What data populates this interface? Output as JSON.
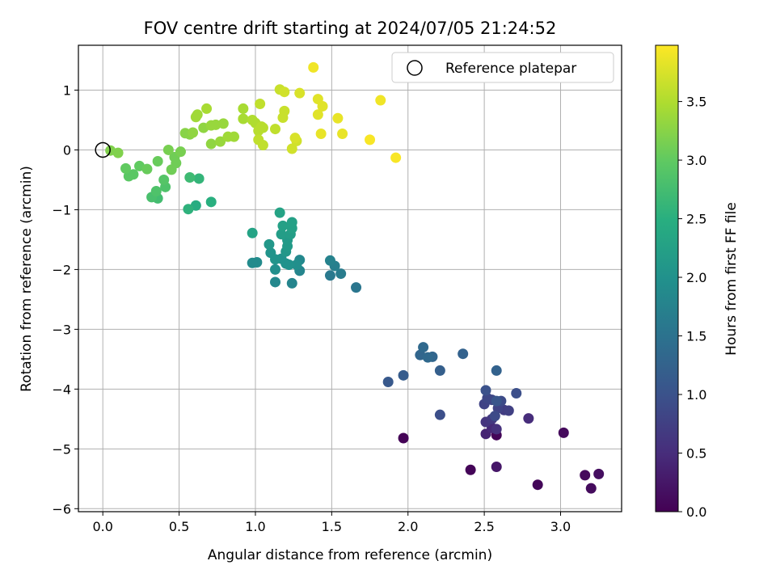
{
  "chart_data": {
    "type": "scatter",
    "title": "FOV centre drift starting at 2024/07/05 21:24:52",
    "xlabel": "Angular distance from reference (arcmin)",
    "ylabel": "Rotation from reference (arcmin)",
    "xlim": [
      -0.16,
      3.4
    ],
    "ylim": [
      -6.05,
      1.75
    ],
    "x_ticks": [
      0.0,
      0.5,
      1.0,
      1.5,
      2.0,
      2.5,
      3.0
    ],
    "x_tick_labels": [
      "0.0",
      "0.5",
      "1.0",
      "1.5",
      "2.0",
      "2.5",
      "3.0"
    ],
    "y_ticks": [
      1,
      0,
      -1,
      -2,
      -3,
      -4,
      -5,
      -6
    ],
    "y_tick_labels": [
      "1",
      "0",
      "−1",
      "−2",
      "−3",
      "−4",
      "−5",
      "−6"
    ],
    "grid": true,
    "legend": {
      "position": "top-right",
      "entries": [
        {
          "label": "Reference platepar",
          "marker": "open-circle"
        }
      ]
    },
    "reference_point": {
      "x": 0.0,
      "y": 0.0
    },
    "colorbar": {
      "label": "Hours from first FF file",
      "colormap": "viridis",
      "range": [
        0.0,
        3.98
      ],
      "ticks": [
        0.0,
        0.5,
        1.0,
        1.5,
        2.0,
        2.5,
        3.0,
        3.5
      ],
      "tick_labels": [
        "0.0",
        "0.5",
        "1.0",
        "1.5",
        "2.0",
        "2.5",
        "3.0",
        "3.5"
      ]
    },
    "points": [
      {
        "x": 1.97,
        "y": -4.82,
        "c": 0.02
      },
      {
        "x": 2.41,
        "y": -5.35,
        "c": 0.05
      },
      {
        "x": 2.58,
        "y": -4.77,
        "c": 0.05
      },
      {
        "x": 2.85,
        "y": -5.6,
        "c": 0.07
      },
      {
        "x": 3.02,
        "y": -4.73,
        "c": 0.1
      },
      {
        "x": 3.16,
        "y": -5.44,
        "c": 0.1
      },
      {
        "x": 3.2,
        "y": -5.66,
        "c": 0.12
      },
      {
        "x": 3.25,
        "y": -5.42,
        "c": 0.15
      },
      {
        "x": 2.58,
        "y": -5.3,
        "c": 0.25
      },
      {
        "x": 2.51,
        "y": -4.75,
        "c": 0.4
      },
      {
        "x": 2.55,
        "y": -4.65,
        "c": 0.45
      },
      {
        "x": 2.79,
        "y": -4.49,
        "c": 0.5
      },
      {
        "x": 2.58,
        "y": -4.67,
        "c": 0.55
      },
      {
        "x": 2.51,
        "y": -4.55,
        "c": 0.6
      },
      {
        "x": 2.55,
        "y": -4.5,
        "c": 0.65
      },
      {
        "x": 2.63,
        "y": -4.35,
        "c": 0.7
      },
      {
        "x": 2.66,
        "y": -4.36,
        "c": 0.75
      },
      {
        "x": 2.59,
        "y": -4.32,
        "c": 0.8
      },
      {
        "x": 2.5,
        "y": -4.25,
        "c": 0.8
      },
      {
        "x": 2.55,
        "y": -4.18,
        "c": 0.85
      },
      {
        "x": 2.52,
        "y": -4.15,
        "c": 0.85
      },
      {
        "x": 2.57,
        "y": -4.45,
        "c": 0.9
      },
      {
        "x": 2.61,
        "y": -4.2,
        "c": 0.9
      },
      {
        "x": 2.21,
        "y": -4.43,
        "c": 0.95
      },
      {
        "x": 2.71,
        "y": -4.07,
        "c": 0.95
      },
      {
        "x": 2.51,
        "y": -4.02,
        "c": 1.0
      },
      {
        "x": 2.58,
        "y": -4.2,
        "c": 1.05
      },
      {
        "x": 1.87,
        "y": -3.88,
        "c": 1.1
      },
      {
        "x": 1.97,
        "y": -3.77,
        "c": 1.15
      },
      {
        "x": 2.21,
        "y": -3.69,
        "c": 1.2
      },
      {
        "x": 2.58,
        "y": -3.69,
        "c": 1.25
      },
      {
        "x": 2.36,
        "y": -3.41,
        "c": 1.25
      },
      {
        "x": 2.08,
        "y": -3.43,
        "c": 1.3
      },
      {
        "x": 2.16,
        "y": -3.46,
        "c": 1.3
      },
      {
        "x": 2.1,
        "y": -3.3,
        "c": 1.35
      },
      {
        "x": 2.13,
        "y": -3.47,
        "c": 1.35
      },
      {
        "x": 1.66,
        "y": -2.3,
        "c": 1.55
      },
      {
        "x": 1.49,
        "y": -2.1,
        "c": 1.6
      },
      {
        "x": 1.56,
        "y": -2.07,
        "c": 1.65
      },
      {
        "x": 1.52,
        "y": -1.94,
        "c": 1.7
      },
      {
        "x": 1.49,
        "y": -1.85,
        "c": 1.75
      },
      {
        "x": 1.29,
        "y": -2.02,
        "c": 1.8
      },
      {
        "x": 1.24,
        "y": -2.23,
        "c": 1.8
      },
      {
        "x": 1.13,
        "y": -2.21,
        "c": 1.85
      },
      {
        "x": 1.29,
        "y": -1.84,
        "c": 1.85
      },
      {
        "x": 1.01,
        "y": -1.88,
        "c": 1.9
      },
      {
        "x": 0.98,
        "y": -1.89,
        "c": 1.9
      },
      {
        "x": 1.13,
        "y": -2.0,
        "c": 1.95
      },
      {
        "x": 1.27,
        "y": -1.92,
        "c": 1.95
      },
      {
        "x": 1.2,
        "y": -1.9,
        "c": 2.0
      },
      {
        "x": 1.17,
        "y": -1.82,
        "c": 2.0
      },
      {
        "x": 1.22,
        "y": -1.92,
        "c": 2.0
      },
      {
        "x": 1.1,
        "y": -1.72,
        "c": 2.05
      },
      {
        "x": 1.13,
        "y": -1.83,
        "c": 2.05
      },
      {
        "x": 1.2,
        "y": -1.7,
        "c": 2.1
      },
      {
        "x": 1.09,
        "y": -1.58,
        "c": 2.1
      },
      {
        "x": 1.21,
        "y": -1.61,
        "c": 2.15
      },
      {
        "x": 1.21,
        "y": -1.51,
        "c": 2.15
      },
      {
        "x": 1.17,
        "y": -1.41,
        "c": 2.2
      },
      {
        "x": 1.23,
        "y": -1.41,
        "c": 2.2
      },
      {
        "x": 1.24,
        "y": -1.31,
        "c": 2.25
      },
      {
        "x": 1.18,
        "y": -1.27,
        "c": 2.25
      },
      {
        "x": 1.24,
        "y": -1.21,
        "c": 2.25
      },
      {
        "x": 0.98,
        "y": -1.39,
        "c": 2.3
      },
      {
        "x": 1.16,
        "y": -1.05,
        "c": 2.3
      },
      {
        "x": 0.61,
        "y": -0.93,
        "c": 2.45
      },
      {
        "x": 0.71,
        "y": -0.87,
        "c": 2.5
      },
      {
        "x": 0.56,
        "y": -0.99,
        "c": 2.55
      },
      {
        "x": 0.63,
        "y": -0.48,
        "c": 2.6
      },
      {
        "x": 0.57,
        "y": -0.46,
        "c": 2.7
      },
      {
        "x": 0.36,
        "y": -0.81,
        "c": 2.75
      },
      {
        "x": 0.32,
        "y": -0.79,
        "c": 2.8
      },
      {
        "x": 0.41,
        "y": -0.62,
        "c": 2.85
      },
      {
        "x": 0.35,
        "y": -0.69,
        "c": 2.85
      },
      {
        "x": 0.4,
        "y": -0.5,
        "c": 2.9
      },
      {
        "x": 0.17,
        "y": -0.44,
        "c": 2.95
      },
      {
        "x": 0.2,
        "y": -0.41,
        "c": 2.95
      },
      {
        "x": 0.15,
        "y": -0.31,
        "c": 3.0
      },
      {
        "x": 0.24,
        "y": -0.27,
        "c": 3.0
      },
      {
        "x": 0.29,
        "y": -0.32,
        "c": 3.05
      },
      {
        "x": 0.36,
        "y": -0.19,
        "c": 3.05
      },
      {
        "x": 0.45,
        "y": -0.33,
        "c": 3.1
      },
      {
        "x": 0.48,
        "y": -0.22,
        "c": 3.1
      },
      {
        "x": 0.47,
        "y": -0.12,
        "c": 3.1
      },
      {
        "x": 0.43,
        "y": 0.0,
        "c": 3.15
      },
      {
        "x": 0.51,
        "y": -0.03,
        "c": 3.15
      },
      {
        "x": 0.1,
        "y": -0.05,
        "c": 3.2
      },
      {
        "x": 0.05,
        "y": -0.01,
        "c": 3.2
      },
      {
        "x": 0.54,
        "y": 0.28,
        "c": 3.25
      },
      {
        "x": 0.57,
        "y": 0.26,
        "c": 3.25
      },
      {
        "x": 0.59,
        "y": 0.29,
        "c": 3.3
      },
      {
        "x": 0.66,
        "y": 0.37,
        "c": 3.3
      },
      {
        "x": 0.71,
        "y": 0.1,
        "c": 3.3
      },
      {
        "x": 0.74,
        "y": 0.42,
        "c": 3.35
      },
      {
        "x": 0.71,
        "y": 0.41,
        "c": 3.35
      },
      {
        "x": 0.77,
        "y": 0.14,
        "c": 3.35
      },
      {
        "x": 0.79,
        "y": 0.44,
        "c": 3.35
      },
      {
        "x": 0.82,
        "y": 0.22,
        "c": 3.4
      },
      {
        "x": 0.86,
        "y": 0.22,
        "c": 3.4
      },
      {
        "x": 0.62,
        "y": 0.59,
        "c": 3.4
      },
      {
        "x": 0.61,
        "y": 0.55,
        "c": 3.4
      },
      {
        "x": 0.68,
        "y": 0.69,
        "c": 3.45
      },
      {
        "x": 0.92,
        "y": 0.69,
        "c": 3.45
      },
      {
        "x": 0.92,
        "y": 0.52,
        "c": 3.45
      },
      {
        "x": 0.98,
        "y": 0.5,
        "c": 3.5
      },
      {
        "x": 1.0,
        "y": 0.45,
        "c": 3.5
      },
      {
        "x": 1.02,
        "y": 0.32,
        "c": 3.55
      },
      {
        "x": 1.04,
        "y": 0.39,
        "c": 3.55
      },
      {
        "x": 1.05,
        "y": 0.37,
        "c": 3.55
      },
      {
        "x": 1.02,
        "y": 0.17,
        "c": 3.6
      },
      {
        "x": 1.05,
        "y": 0.08,
        "c": 3.6
      },
      {
        "x": 1.13,
        "y": 0.35,
        "c": 3.6
      },
      {
        "x": 1.03,
        "y": 0.77,
        "c": 3.6
      },
      {
        "x": 1.19,
        "y": 0.65,
        "c": 3.65
      },
      {
        "x": 1.18,
        "y": 0.54,
        "c": 3.65
      },
      {
        "x": 1.16,
        "y": 1.01,
        "c": 3.65
      },
      {
        "x": 1.19,
        "y": 0.97,
        "c": 3.7
      },
      {
        "x": 1.24,
        "y": 0.02,
        "c": 3.7
      },
      {
        "x": 1.27,
        "y": 0.15,
        "c": 3.7
      },
      {
        "x": 1.26,
        "y": 0.2,
        "c": 3.75
      },
      {
        "x": 1.29,
        "y": 0.95,
        "c": 3.75
      },
      {
        "x": 1.41,
        "y": 0.85,
        "c": 3.8
      },
      {
        "x": 1.44,
        "y": 0.73,
        "c": 3.8
      },
      {
        "x": 1.41,
        "y": 0.59,
        "c": 3.8
      },
      {
        "x": 1.43,
        "y": 0.27,
        "c": 3.85
      },
      {
        "x": 1.57,
        "y": 0.27,
        "c": 3.85
      },
      {
        "x": 1.54,
        "y": 0.53,
        "c": 3.85
      },
      {
        "x": 1.38,
        "y": 1.38,
        "c": 3.9
      },
      {
        "x": 1.82,
        "y": 0.83,
        "c": 3.9
      },
      {
        "x": 1.75,
        "y": 0.17,
        "c": 3.95
      },
      {
        "x": 1.92,
        "y": -0.13,
        "c": 3.95
      }
    ]
  }
}
